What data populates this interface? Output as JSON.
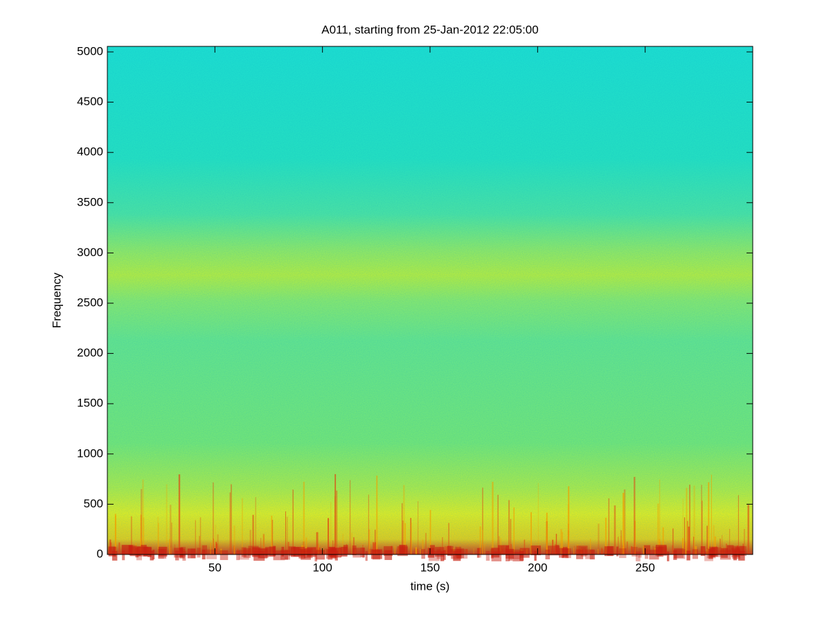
{
  "chart_data": {
    "type": "spectrogram",
    "title": "A011, starting from 25-Jan-2012 22:05:00",
    "x_label": "time (s)",
    "y_label": "Frequency",
    "xlim": [
      0,
      300
    ],
    "ylim": [
      0,
      5055
    ],
    "xticks": [
      50,
      100,
      150,
      200,
      250
    ],
    "yticks": [
      0,
      500,
      1000,
      1500,
      2000,
      2500,
      3000,
      3500,
      4000,
      4500,
      5000
    ]
  }
}
